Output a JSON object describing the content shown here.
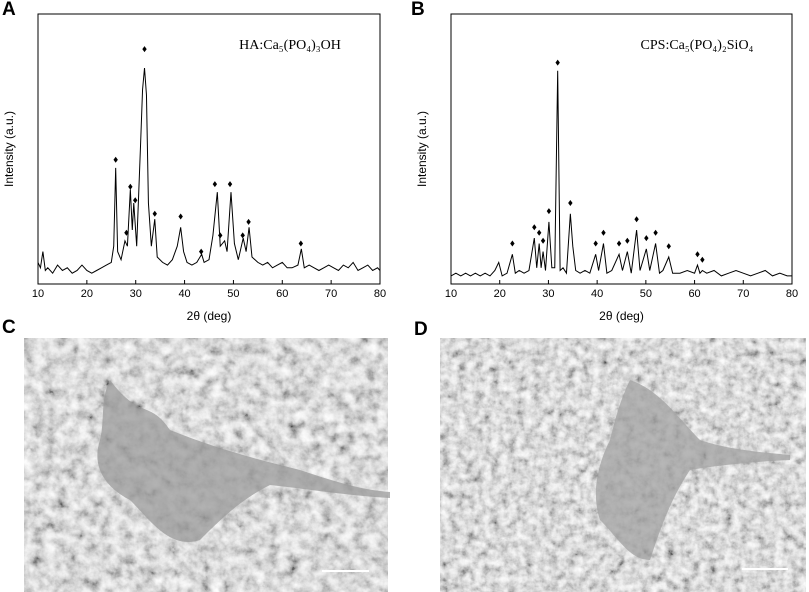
{
  "chart_data": [
    {
      "type": "line",
      "panel": "A",
      "annotation": "HA:Ca₅(PO₄)₃OH",
      "x_label": "2θ (deg)",
      "y_label": "Intensity (a.u.)",
      "x": [
        10,
        10.5,
        11,
        11.5,
        12,
        13,
        14,
        15,
        16,
        17,
        18,
        19,
        20,
        21,
        22,
        23,
        24,
        25,
        25.5,
        25.9,
        26.3,
        27,
        27.8,
        28.3,
        28.9,
        29.3,
        29.6,
        30.2,
        31,
        31.4,
        31.8,
        32.2,
        32.6,
        33.2,
        33.9,
        34.4,
        35.5,
        36.5,
        37.5,
        38.5,
        39.2,
        39.8,
        40.5,
        41.5,
        42.5,
        43.5,
        44,
        45,
        45.8,
        46.7,
        47.3,
        48.2,
        48.7,
        49.5,
        50.2,
        51,
        52,
        52.6,
        53.2,
        53.8,
        55,
        56,
        57,
        58,
        59,
        60,
        61,
        62,
        63.2,
        63.9,
        64.5,
        65.5,
        66.5,
        67.5,
        68.5,
        69.5,
        70.5,
        71.5,
        72.5,
        73.5,
        74.5,
        75.5,
        76.5,
        77.5,
        78.5,
        79.5,
        80
      ],
      "series": [
        {
          "color": "#000000",
          "values": [
            8,
            6,
            12,
            5,
            6,
            4,
            7,
            5,
            6,
            4,
            5,
            7,
            5,
            4,
            5,
            6,
            7,
            8,
            14,
            43,
            12,
            9,
            16,
            14,
            35,
            20,
            30,
            14,
            52,
            72,
            80,
            70,
            30,
            14,
            24,
            10,
            8,
            7,
            9,
            14,
            21,
            12,
            8,
            7,
            8,
            11,
            8,
            9,
            18,
            34,
            14,
            16,
            12,
            34,
            15,
            9,
            17,
            12,
            21,
            10,
            8,
            7,
            8,
            6,
            7,
            8,
            6,
            6,
            7,
            13,
            6,
            7,
            6,
            5,
            6,
            7,
            6,
            5,
            7,
            6,
            8,
            5,
            6,
            7,
            5,
            6,
            5
          ]
        }
      ],
      "markers": {
        "x": [
          25.9,
          28.1,
          28.9,
          29.9,
          31.8,
          33.9,
          39.2,
          43.4,
          46.2,
          47.3,
          49.3,
          51.9,
          53.1,
          63.8
        ],
        "y": [
          46,
          19,
          36,
          31,
          87,
          26,
          25,
          12,
          37,
          18,
          37,
          18,
          23,
          15
        ]
      },
      "xlim": [
        10,
        80
      ],
      "xticks": [
        10,
        20,
        30,
        40,
        50,
        60,
        70,
        80
      ],
      "ylim": [
        0,
        100
      ]
    },
    {
      "type": "line",
      "panel": "B",
      "annotation": "CPS:Ca₅(PO₄)₂SiO₄",
      "x_label": "2θ (deg)",
      "y_label": "Intensity (a.u.)",
      "x": [
        10,
        11,
        12,
        13,
        14,
        15,
        16,
        17,
        18,
        19,
        19.8,
        20.5,
        21.5,
        22.6,
        23.2,
        24,
        25,
        26,
        27.1,
        27.6,
        28.1,
        28.5,
        28.9,
        29.4,
        30.1,
        30.7,
        31.3,
        31.9,
        32.4,
        33,
        33.7,
        34.5,
        35,
        35.6,
        36.5,
        37.5,
        38.5,
        39.7,
        40.3,
        41.3,
        42,
        43,
        44.5,
        45.2,
        46.2,
        47,
        48.1,
        48.8,
        50.1,
        50.8,
        52,
        52.8,
        53.5,
        54.7,
        55.5,
        57,
        58.5,
        60,
        60.6,
        61.1,
        61.6,
        62.5,
        64,
        65.5,
        67,
        68.5,
        70,
        71.5,
        73,
        74.5,
        76,
        77.5,
        79,
        80
      ],
      "series": [
        {
          "color": "#000000",
          "values": [
            3,
            4,
            3,
            4,
            3,
            4,
            3,
            4,
            3,
            5,
            8,
            3,
            4,
            11,
            4,
            5,
            4,
            5,
            17,
            6,
            15,
            6,
            12,
            5,
            23,
            6,
            6,
            79,
            5,
            6,
            4,
            26,
            14,
            5,
            4,
            5,
            4,
            11,
            5,
            15,
            4,
            5,
            11,
            5,
            12,
            4,
            20,
            5,
            13,
            5,
            15,
            4,
            5,
            10,
            4,
            4,
            5,
            4,
            7,
            4,
            5,
            4,
            5,
            3,
            4,
            5,
            4,
            3,
            4,
            5,
            3,
            4,
            3,
            3
          ]
        }
      ],
      "markers": {
        "x": [
          22.6,
          27.1,
          28.1,
          28.9,
          30.1,
          31.9,
          34.5,
          39.7,
          41.3,
          44.5,
          46.2,
          48.1,
          50.1,
          52,
          54.7,
          60.6,
          61.6
        ],
        "y": [
          15,
          21,
          19,
          16,
          27,
          82,
          30,
          15,
          19,
          15,
          16,
          24,
          17,
          19,
          14,
          11,
          9
        ]
      },
      "xlim": [
        10,
        80
      ],
      "xticks": [
        10,
        20,
        30,
        40,
        50,
        60,
        70,
        80
      ],
      "ylim": [
        0,
        100
      ]
    }
  ],
  "images": [
    {
      "panel": "C"
    },
    {
      "panel": "D"
    }
  ]
}
